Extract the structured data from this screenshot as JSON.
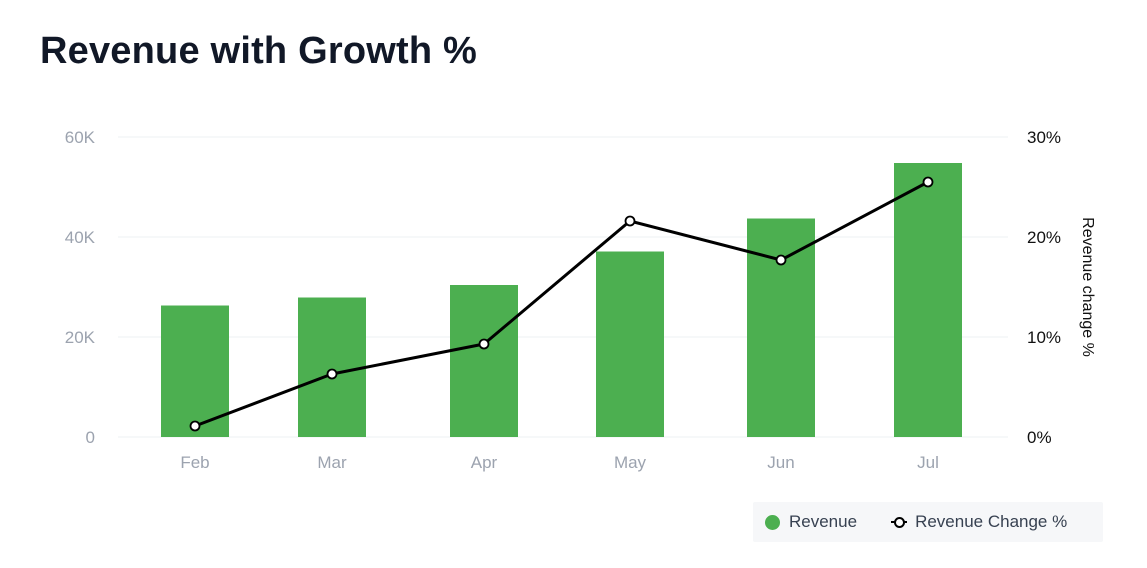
{
  "chart_data": {
    "type": "bar",
    "title": "Revenue with Growth %",
    "categories": [
      "Feb",
      "Mar",
      "Apr",
      "May",
      "Jun",
      "Jul"
    ],
    "series": [
      {
        "name": "Revenue",
        "type": "bar",
        "axis": "left",
        "color": "#4caf50",
        "values": [
          26300,
          27900,
          30400,
          37100,
          43700,
          54800
        ]
      },
      {
        "name": "Revenue Change %",
        "type": "line",
        "axis": "right",
        "color": "#000000",
        "values": [
          1.1,
          6.3,
          9.3,
          21.6,
          17.7,
          25.5
        ]
      }
    ],
    "left_axis": {
      "label": "",
      "ylim": [
        0,
        60000
      ],
      "ticks": [
        0,
        20000,
        40000,
        60000
      ],
      "tick_labels": [
        "0",
        "20K",
        "40K",
        "60K"
      ]
    },
    "right_axis": {
      "label": "Revenue change %",
      "ylim": [
        0,
        30
      ],
      "ticks": [
        0,
        10,
        20,
        30
      ],
      "tick_labels": [
        "0%",
        "10%",
        "20%",
        "30%"
      ]
    },
    "xlabel": "",
    "grid": true,
    "legend": {
      "position": "bottom-right",
      "entries": [
        "Revenue",
        "Revenue Change %"
      ]
    }
  }
}
